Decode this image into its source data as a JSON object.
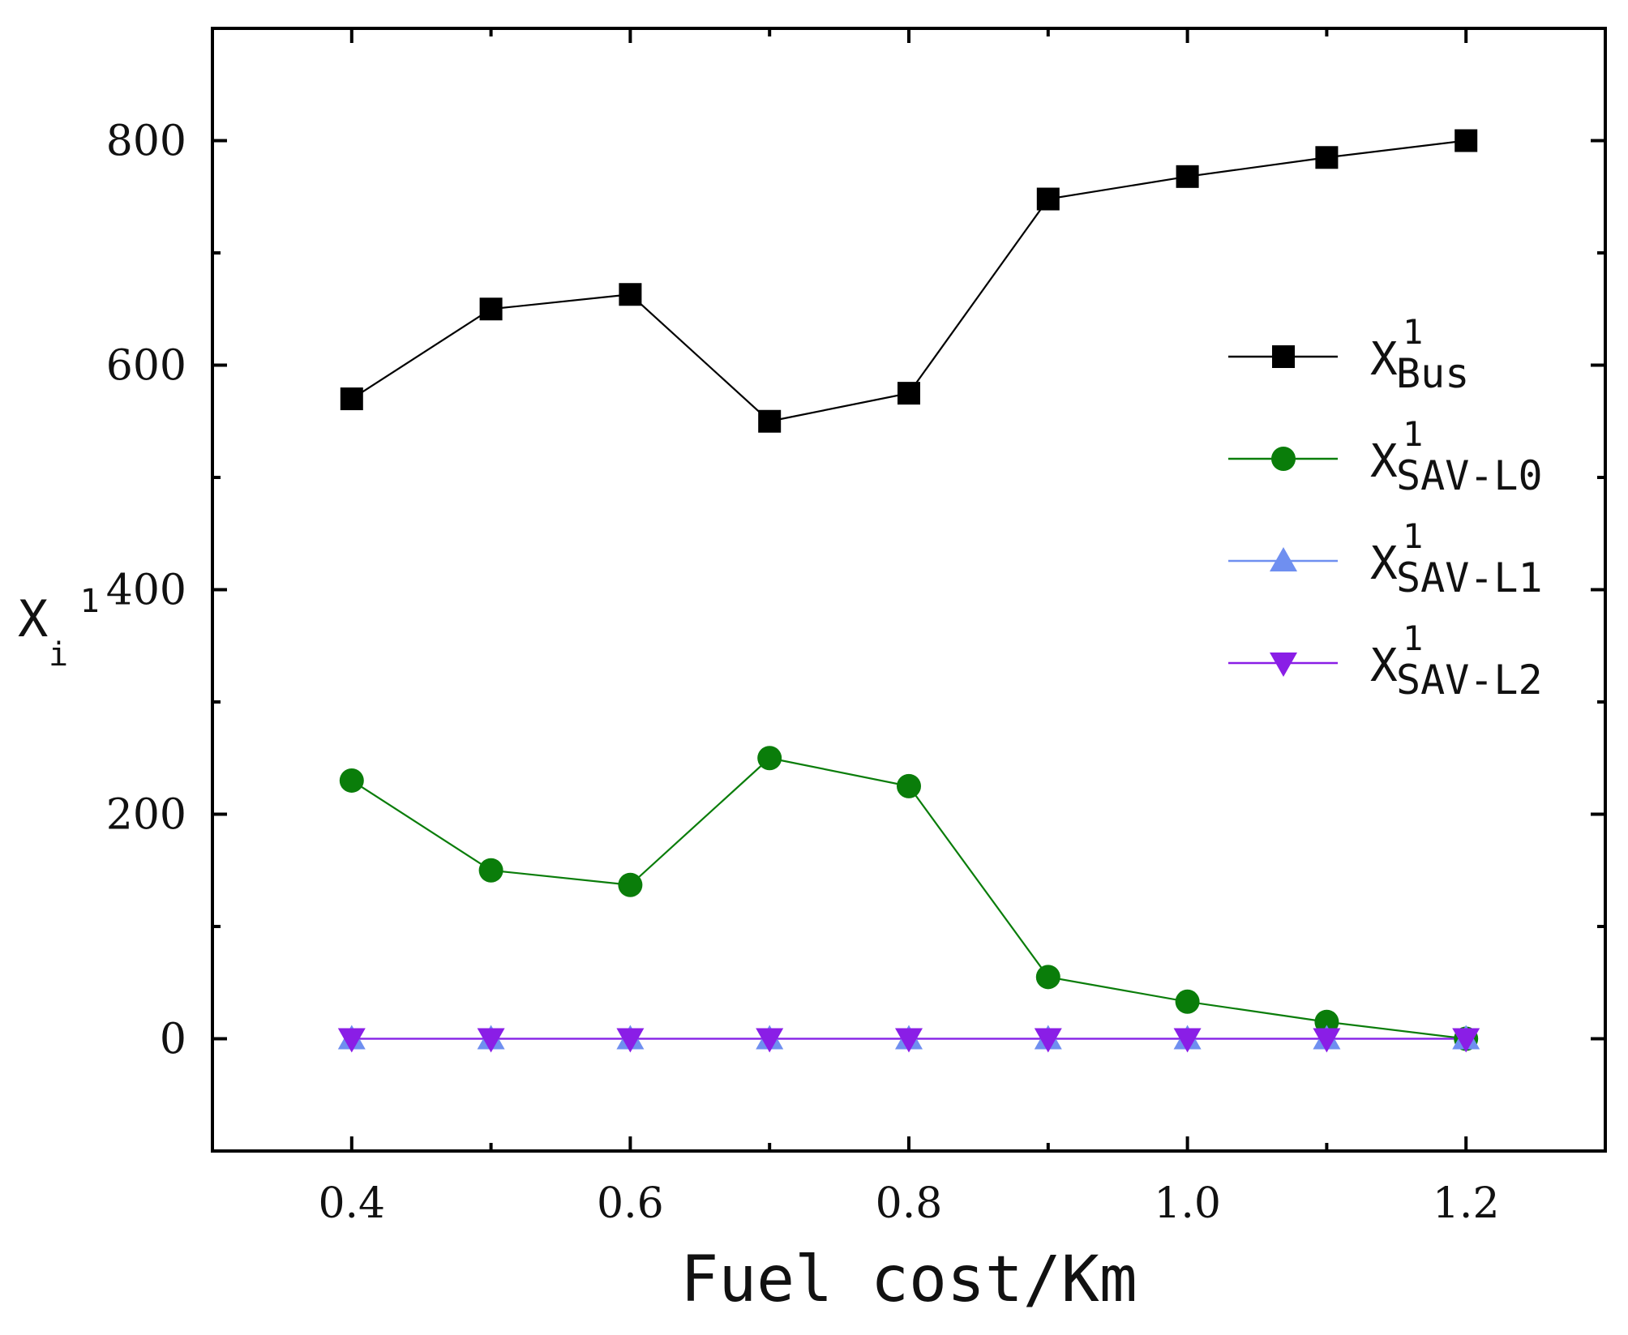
{
  "chart_data": {
    "type": "line",
    "title": "",
    "xlabel": "Fuel cost/Km",
    "ylabel": {
      "base": "X",
      "sub": "i",
      "sup": "1"
    },
    "xlim": [
      0.3,
      1.3
    ],
    "ylim": [
      -100,
      900
    ],
    "x": [
      0.4,
      0.5,
      0.6,
      0.7,
      0.8,
      0.9,
      1.0,
      1.1,
      1.2
    ],
    "xticks": [
      0.4,
      0.6,
      0.8,
      1.0,
      1.2
    ],
    "xtick_labels": [
      "0.4",
      "0.6",
      "0.8",
      "1.0",
      "1.2"
    ],
    "yticks": [
      0,
      200,
      400,
      600,
      800
    ],
    "ytick_labels": [
      "0",
      "200",
      "400",
      "600",
      "800"
    ],
    "legend_position": "right",
    "series": [
      {
        "name": "X_Bus^1",
        "legend": {
          "base": "X",
          "sub": "Bus",
          "sup": "1"
        },
        "marker": "square",
        "color": "#000000",
        "values": [
          570,
          650,
          663,
          550,
          575,
          748,
          768,
          785,
          800
        ]
      },
      {
        "name": "X_SAV-L0^1",
        "legend": {
          "base": "X",
          "sub": "SAV-L0",
          "sup": "1"
        },
        "marker": "circle",
        "color": "#0a7d0a",
        "values": [
          230,
          150,
          137,
          250,
          225,
          55,
          33,
          15,
          0
        ]
      },
      {
        "name": "X_SAV-L1^1",
        "legend": {
          "base": "X",
          "sub": "SAV-L1",
          "sup": "1"
        },
        "marker": "triangle-up",
        "color": "#6f8ff0",
        "values": [
          0,
          0,
          0,
          0,
          0,
          0,
          0,
          0,
          0
        ]
      },
      {
        "name": "X_SAV-L2^1",
        "legend": {
          "base": "X",
          "sub": "SAV-L2",
          "sup": "1"
        },
        "marker": "triangle-down",
        "color": "#8a1ee6",
        "values": [
          0,
          0,
          0,
          0,
          0,
          0,
          0,
          0,
          0
        ]
      }
    ]
  }
}
